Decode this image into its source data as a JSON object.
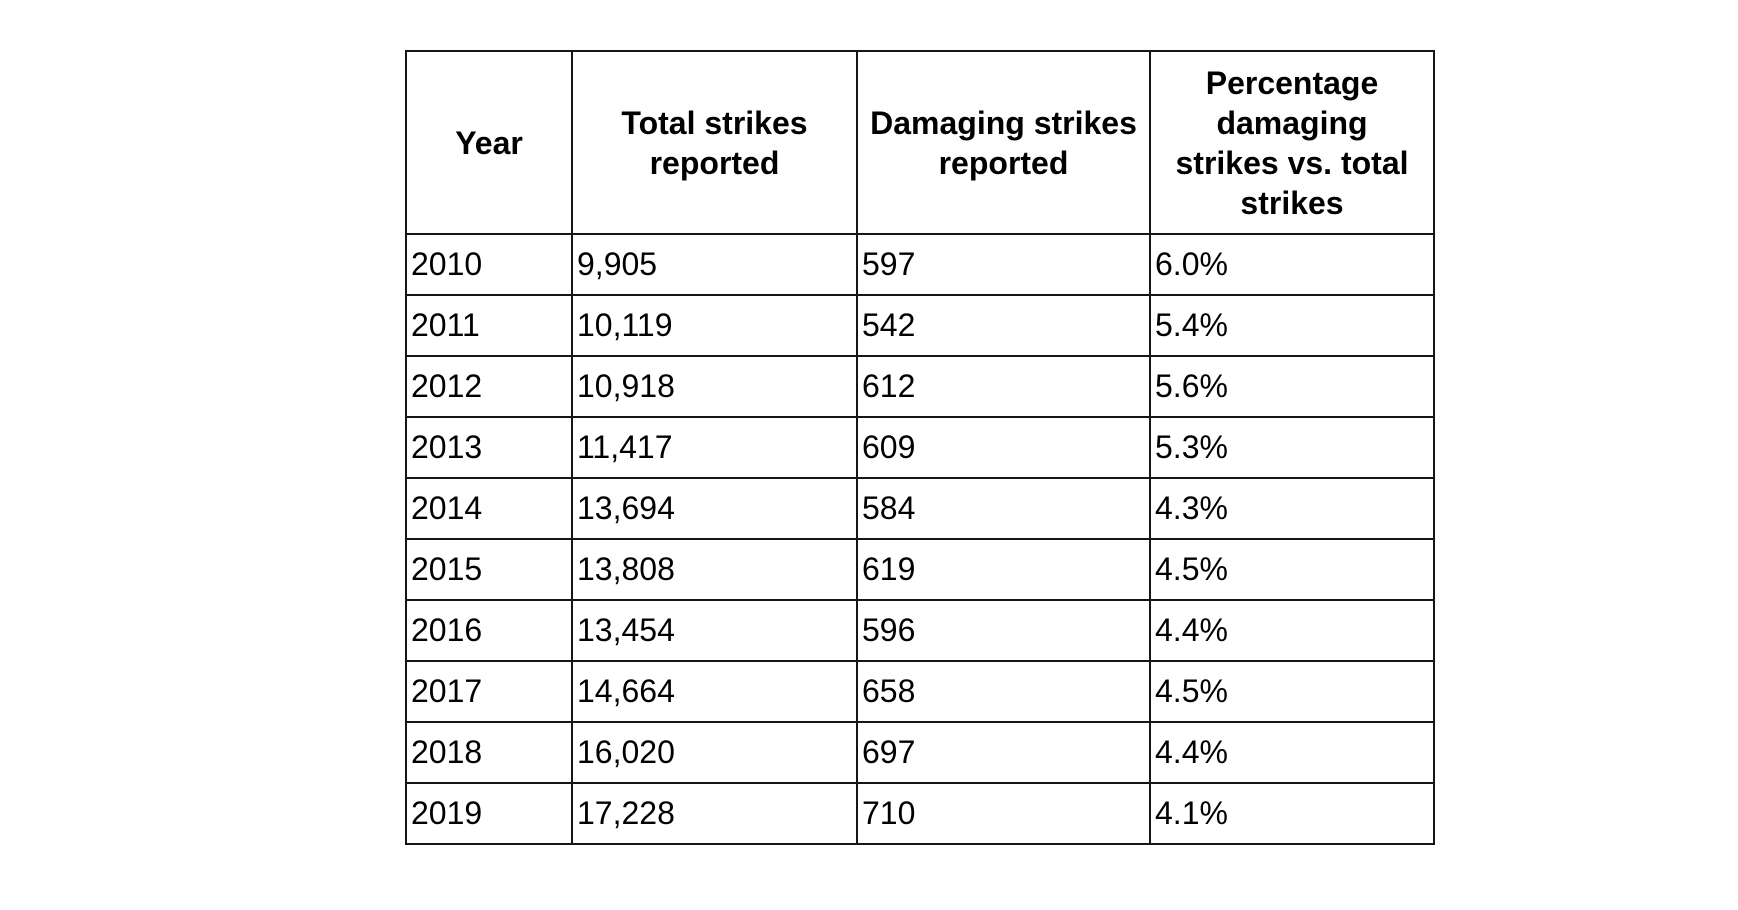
{
  "chart_data": {
    "type": "table",
    "columns": [
      "Year",
      "Total strikes reported",
      "Damaging strikes reported",
      "Percentage damaging strikes vs. total strikes"
    ],
    "rows": [
      [
        "2010",
        "9,905",
        "597",
        "6.0%"
      ],
      [
        "2011",
        "10,119",
        "542",
        "5.4%"
      ],
      [
        "2012",
        "10,918",
        "612",
        "5.6%"
      ],
      [
        "2013",
        "11,417",
        "609",
        "5.3%"
      ],
      [
        "2014",
        "13,694",
        "584",
        "4.3%"
      ],
      [
        "2015",
        "13,808",
        "619",
        "4.5%"
      ],
      [
        "2016",
        "13,454",
        "596",
        "4.4%"
      ],
      [
        "2017",
        "14,664",
        "658",
        "4.5%"
      ],
      [
        "2018",
        "16,020",
        "697",
        "4.4%"
      ],
      [
        "2019",
        "17,228",
        "710",
        "4.1%"
      ]
    ],
    "title": "",
    "layout_hints": {
      "header_lines_col_3": [
        "Percentage",
        "damaging",
        "strikes vs. total",
        "strikes"
      ],
      "grid": "on",
      "data_alignment": "left",
      "header_alignment": "center"
    }
  },
  "colors": {
    "border": "#161616",
    "text": "#000000",
    "background": "#ffffff"
  }
}
